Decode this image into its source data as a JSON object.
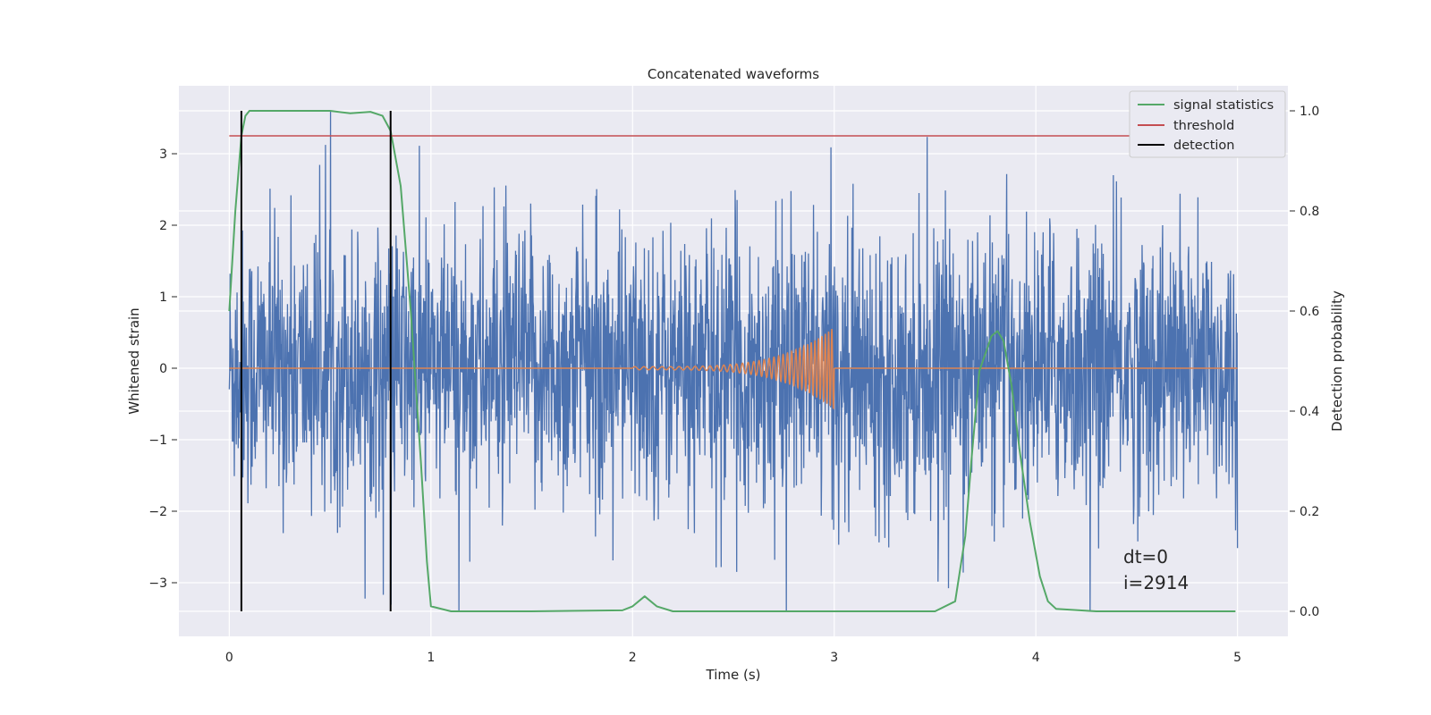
{
  "chart_data": {
    "type": "line",
    "title": "Concatenated waveforms",
    "xlabel": "Time (s)",
    "ylabel": "Whitened strain",
    "y2label": "Detection probability",
    "xlim": [
      -0.25,
      5.25
    ],
    "ylim": [
      -3.75,
      3.95
    ],
    "y2lim": [
      -0.05,
      1.05
    ],
    "x_ticks": [
      "0",
      "1",
      "2",
      "3",
      "4",
      "5"
    ],
    "y_ticks": [
      "−3",
      "−2",
      "−1",
      "0",
      "1",
      "2",
      "3"
    ],
    "y2_ticks": [
      "0.0",
      "0.2",
      "0.4",
      "0.6",
      "0.8",
      "1.0"
    ],
    "grid": true,
    "legend_position": "top-right",
    "colors": {
      "strain": "#4c72b0",
      "template": "#dd8452",
      "signal_statistics": "#55a868",
      "threshold": "#c44e52",
      "detection": "#000000",
      "axes_bg": "#eaeaf2"
    },
    "series": [
      {
        "name": "",
        "axis": "left",
        "kind": "whitened strain (noise)",
        "x_range": [
          0,
          5
        ],
        "envelope_typical": [
          -1.6,
          1.6
        ],
        "envelope_peaks": [
          -3.4,
          3.6
        ]
      },
      {
        "name": "",
        "axis": "left",
        "kind": "injected chirp template",
        "x_range": [
          0,
          5
        ],
        "chirp_x_range": [
          2.0,
          3.0
        ],
        "chirp_peak_amplitude": 0.55
      },
      {
        "name": "signal statistics",
        "axis": "right",
        "x": [
          0,
          0.03,
          0.06,
          0.08,
          0.1,
          0.15,
          0.3,
          0.5,
          0.6,
          0.7,
          0.76,
          0.8,
          0.85,
          0.9,
          0.95,
          0.98,
          1.0,
          1.1,
          1.5,
          1.95,
          2.0,
          2.06,
          2.12,
          2.2,
          2.5,
          3.0,
          3.5,
          3.6,
          3.65,
          3.68,
          3.72,
          3.78,
          3.81,
          3.84,
          3.88,
          3.92,
          3.97,
          4.02,
          4.06,
          4.1,
          4.3,
          4.6,
          4.99
        ],
        "y": [
          0.6,
          0.8,
          0.95,
          0.99,
          1.0,
          1.0,
          1.0,
          1.0,
          0.995,
          0.998,
          0.99,
          0.96,
          0.85,
          0.6,
          0.3,
          0.1,
          0.01,
          0.0,
          0.0,
          0.002,
          0.01,
          0.03,
          0.01,
          0.0,
          0.0,
          0.0,
          0.0,
          0.02,
          0.15,
          0.3,
          0.48,
          0.55,
          0.56,
          0.54,
          0.45,
          0.32,
          0.18,
          0.07,
          0.02,
          0.005,
          0.0,
          0.0,
          0.0
        ]
      },
      {
        "name": "threshold",
        "axis": "right",
        "x": [
          0,
          5
        ],
        "y": [
          0.95,
          0.95
        ]
      },
      {
        "name": "detection",
        "axis": "right",
        "kind": "vertical lines",
        "x": [
          0.06,
          0.8
        ],
        "y_range": [
          0.0,
          1.0
        ]
      }
    ],
    "annotations": [
      "dt=0",
      "i=2914"
    ]
  }
}
